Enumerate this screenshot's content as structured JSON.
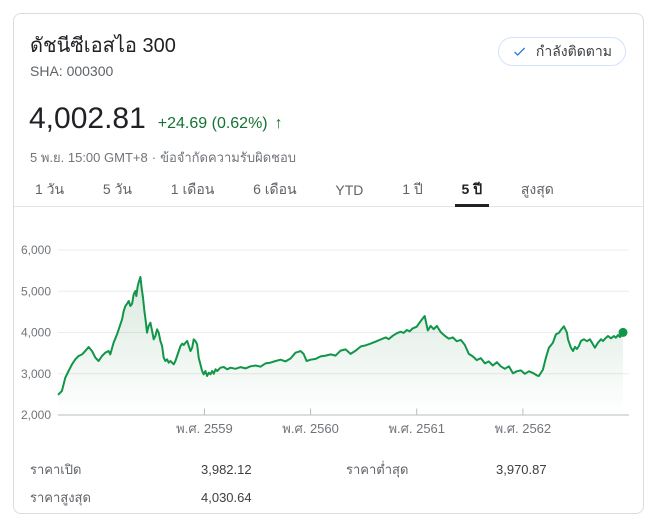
{
  "header": {
    "title": "ดัชนีซีเอสไอ 300",
    "symbol": "SHA: 000300",
    "follow_button": {
      "label": "กำลังติดตาม",
      "icon": "check-icon",
      "icon_color": "#1a73e8"
    },
    "price": "4,002.81",
    "change": "+24.69 (0.62%)",
    "change_direction": "up",
    "change_arrow": "↑",
    "change_color": "#137333",
    "timestamp": "5 พ.ย. 15:00 GMT+8",
    "separator": "·",
    "disclaimer": "ข้อจำกัดความรับผิดชอบ"
  },
  "tabs": [
    {
      "label": "1 วัน",
      "selected": false
    },
    {
      "label": "5 วัน",
      "selected": false
    },
    {
      "label": "1 เดือน",
      "selected": false
    },
    {
      "label": "6 เดือน",
      "selected": false
    },
    {
      "label": "YTD",
      "selected": false
    },
    {
      "label": "1 ปี",
      "selected": false
    },
    {
      "label": "5 ปี",
      "selected": true
    },
    {
      "label": "สูงสุด",
      "selected": false
    }
  ],
  "chart_data": {
    "type": "area",
    "title": "CSI 300 index, 5 year range",
    "line_color": "#119649",
    "fill_color": "#137333",
    "grid": true,
    "legend": "none",
    "ylim": [
      2000,
      6000
    ],
    "yticks": [
      2000,
      3000,
      4000,
      5000,
      6000
    ],
    "ytick_labels": [
      "2,000",
      "3,000",
      "4,000",
      "5,000",
      "6,000"
    ],
    "xlim": [
      2557.62,
      2563.0
    ],
    "xticks": [
      2559,
      2560,
      2561,
      2562
    ],
    "xtick_labels": [
      "พ.ศ. 2559",
      "พ.ศ. 2560",
      "พ.ศ. 2561",
      "พ.ศ. 2562"
    ],
    "last_price": 4002.81,
    "end_dot": true,
    "x": [
      2557.626,
      2557.657,
      2557.689,
      2557.72,
      2557.752,
      2557.783,
      2557.814,
      2557.846,
      2557.877,
      2557.908,
      2557.94,
      2557.972,
      2558.003,
      2558.035,
      2558.066,
      2558.097,
      2558.113,
      2558.144,
      2558.176,
      2558.208,
      2558.224,
      2558.239,
      2558.255,
      2558.271,
      2558.286,
      2558.302,
      2558.318,
      2558.333,
      2558.349,
      2558.358,
      2558.371,
      2558.384,
      2558.396,
      2558.408,
      2558.421,
      2558.434,
      2558.446,
      2558.459,
      2558.474,
      2558.491,
      2558.507,
      2558.522,
      2558.538,
      2558.554,
      2558.569,
      2558.585,
      2558.601,
      2558.616,
      2558.632,
      2558.648,
      2558.663,
      2558.679,
      2558.71,
      2558.726,
      2558.742,
      2558.758,
      2558.774,
      2558.79,
      2558.805,
      2558.821,
      2558.837,
      2558.852,
      2558.868,
      2558.884,
      2558.899,
      2558.915,
      2558.931,
      2558.946,
      2558.962,
      2558.978,
      2558.993,
      2559.009,
      2559.025,
      2559.041,
      2559.057,
      2559.073,
      2559.088,
      2559.104,
      2559.12,
      2559.151,
      2559.182,
      2559.214,
      2559.245,
      2559.292,
      2559.34,
      2559.387,
      2559.434,
      2559.481,
      2559.528,
      2559.575,
      2559.623,
      2559.67,
      2559.717,
      2559.764,
      2559.811,
      2559.858,
      2559.906,
      2559.934,
      2559.962,
      2560.0,
      2560.047,
      2560.094,
      2560.142,
      2560.189,
      2560.236,
      2560.283,
      2560.33,
      2560.377,
      2560.425,
      2560.472,
      2560.519,
      2560.566,
      2560.613,
      2560.66,
      2560.708,
      2560.736,
      2560.774,
      2560.811,
      2560.849,
      2560.877,
      2560.906,
      2560.934,
      2560.962,
      2561.0,
      2561.038,
      2561.075,
      2561.104,
      2561.132,
      2561.16,
      2561.189,
      2561.226,
      2561.264,
      2561.302,
      2561.34,
      2561.377,
      2561.415,
      2561.453,
      2561.491,
      2561.528,
      2561.566,
      2561.604,
      2561.642,
      2561.679,
      2561.717,
      2561.755,
      2561.792,
      2561.83,
      2561.868,
      2561.906,
      2561.943,
      2561.981,
      2562.019,
      2562.057,
      2562.094,
      2562.132,
      2562.151,
      2562.189,
      2562.217,
      2562.245,
      2562.283,
      2562.311,
      2562.34,
      2562.358,
      2562.387,
      2562.415,
      2562.425,
      2562.453,
      2562.472,
      2562.491,
      2562.509,
      2562.528,
      2562.547,
      2562.575,
      2562.604,
      2562.632,
      2562.651,
      2562.679,
      2562.708,
      2562.736,
      2562.755,
      2562.783,
      2562.802,
      2562.83,
      2562.858,
      2562.877,
      2562.896,
      2562.915,
      2562.934,
      2562.943
    ],
    "y": [
      2503,
      2582,
      2905,
      3067,
      3228,
      3350,
      3430,
      3470,
      3552,
      3648,
      3552,
      3390,
      3309,
      3430,
      3511,
      3552,
      3470,
      3753,
      3955,
      4198,
      4319,
      4521,
      4642,
      4698,
      4763,
      4642,
      4698,
      4925,
      5006,
      4884,
      5127,
      5248,
      5345,
      5086,
      4844,
      4521,
      4279,
      3996,
      4157,
      4238,
      4036,
      3835,
      3915,
      4077,
      3996,
      3794,
      3673,
      3390,
      3309,
      3350,
      3269,
      3309,
      3228,
      3309,
      3430,
      3552,
      3673,
      3729,
      3700,
      3753,
      3794,
      3673,
      3552,
      3633,
      3835,
      3794,
      3713,
      3390,
      3228,
      3067,
      2986,
      3067,
      2945,
      3026,
      2986,
      3067,
      3000,
      3107,
      3067,
      3147,
      3164,
      3107,
      3147,
      3120,
      3160,
      3130,
      3180,
      3200,
      3170,
      3250,
      3270,
      3310,
      3340,
      3300,
      3370,
      3510,
      3550,
      3480,
      3310,
      3340,
      3360,
      3420,
      3440,
      3470,
      3440,
      3560,
      3590,
      3480,
      3560,
      3660,
      3690,
      3730,
      3780,
      3830,
      3880,
      3840,
      3920,
      3980,
      4020,
      3990,
      4060,
      4030,
      4100,
      4140,
      4280,
      4400,
      4050,
      4160,
      4080,
      4160,
      4010,
      3920,
      3850,
      3880,
      3790,
      3820,
      3700,
      3480,
      3420,
      3330,
      3380,
      3250,
      3300,
      3200,
      3280,
      3180,
      3120,
      3180,
      3010,
      3060,
      3080,
      3000,
      3060,
      3020,
      2960,
      2945,
      3100,
      3390,
      3632,
      3753,
      3955,
      3996,
      4060,
      4150,
      4000,
      3835,
      3632,
      3552,
      3650,
      3600,
      3673,
      3794,
      3835,
      3790,
      3835,
      3753,
      3632,
      3753,
      3835,
      3794,
      3875,
      3915,
      3860,
      3915,
      3875,
      3940,
      3890,
      3955,
      4002.81
    ]
  },
  "stats": {
    "cells": [
      {
        "label": "ราคาเปิด",
        "value": "3,982.12"
      },
      {
        "label": "ราคาต่ำสุด",
        "value": "3,970.87"
      },
      {
        "label": "ราคาสูงสุด",
        "value": "4,030.64"
      }
    ]
  }
}
